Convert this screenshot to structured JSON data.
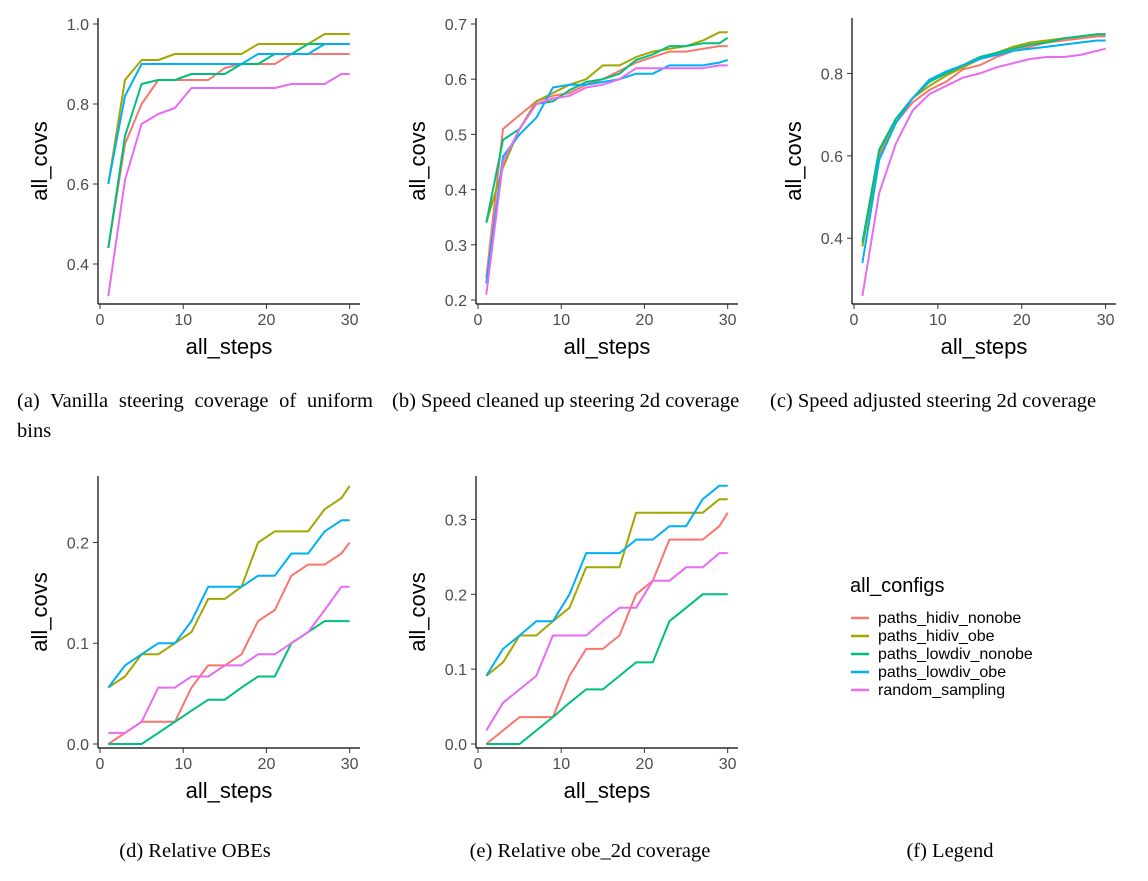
{
  "colors": {
    "paths_hidiv_nonobe": "#F8766D",
    "paths_hidiv_obe": "#A3A500",
    "paths_lowdiv_nonobe": "#00BF7D",
    "paths_lowdiv_obe": "#00B0F6",
    "random_sampling": "#E76BF3"
  },
  "legend": {
    "title": "all_configs",
    "items": [
      "paths_hidiv_nonobe",
      "paths_hidiv_obe",
      "paths_lowdiv_nonobe",
      "paths_lowdiv_obe",
      "random_sampling"
    ]
  },
  "captions": {
    "a": "(a) Vanilla steering coverage of uniform bins",
    "b": "(b) Speed cleaned up steering 2d coverage",
    "c": "(c) Speed adjusted steering 2d coverage",
    "d": "(d) Relative OBEs",
    "e": "(e) Relative obe_2d coverage",
    "f": "(f) Legend"
  },
  "chart_data": [
    {
      "type": "line",
      "id": "a",
      "xlabel": "all_steps",
      "ylabel": "all_covs",
      "xlim": [
        0,
        31
      ],
      "ylim": [
        0.31,
        1.0
      ],
      "xticks": [
        0,
        10,
        20,
        30
      ],
      "yticks": [
        0.4,
        0.6,
        0.8,
        1.0
      ],
      "ytick_labels": [
        "0.4",
        "0.6",
        "0.8",
        "1.0"
      ],
      "x": [
        1,
        3,
        5,
        7,
        9,
        11,
        13,
        15,
        17,
        19,
        21,
        23,
        25,
        27,
        29,
        30
      ],
      "series": [
        {
          "name": "paths_hidiv_nonobe",
          "values": [
            0.44,
            0.7,
            0.8,
            0.86,
            0.86,
            0.86,
            0.86,
            0.89,
            0.9,
            0.9,
            0.9,
            0.925,
            0.925,
            0.925,
            0.925,
            0.925
          ]
        },
        {
          "name": "paths_hidiv_obe",
          "values": [
            0.6,
            0.86,
            0.91,
            0.91,
            0.925,
            0.925,
            0.925,
            0.925,
            0.925,
            0.95,
            0.95,
            0.95,
            0.95,
            0.975,
            0.975,
            0.975
          ]
        },
        {
          "name": "paths_lowdiv_nonobe",
          "values": [
            0.44,
            0.72,
            0.85,
            0.86,
            0.86,
            0.875,
            0.875,
            0.875,
            0.9,
            0.9,
            0.925,
            0.925,
            0.95,
            0.95,
            0.95,
            0.95
          ]
        },
        {
          "name": "paths_lowdiv_obe",
          "values": [
            0.6,
            0.82,
            0.9,
            0.9,
            0.9,
            0.9,
            0.9,
            0.9,
            0.9,
            0.925,
            0.925,
            0.925,
            0.925,
            0.95,
            0.95,
            0.95
          ]
        },
        {
          "name": "random_sampling",
          "values": [
            0.32,
            0.61,
            0.75,
            0.775,
            0.79,
            0.84,
            0.84,
            0.84,
            0.84,
            0.84,
            0.84,
            0.85,
            0.85,
            0.85,
            0.875,
            0.875
          ]
        }
      ]
    },
    {
      "type": "line",
      "id": "b",
      "xlabel": "all_steps",
      "ylabel": "all_covs",
      "xlim": [
        0,
        31
      ],
      "ylim": [
        0.2,
        0.7
      ],
      "xticks": [
        0,
        10,
        20,
        30
      ],
      "yticks": [
        0.2,
        0.3,
        0.4,
        0.5,
        0.6,
        0.7
      ],
      "ytick_labels": [
        "0.2",
        "0.3",
        "0.4",
        "0.5",
        "0.6",
        "0.7"
      ],
      "x": [
        1,
        3,
        5,
        7,
        9,
        11,
        13,
        15,
        17,
        19,
        21,
        23,
        25,
        27,
        29,
        30
      ],
      "series": [
        {
          "name": "paths_hidiv_nonobe",
          "values": [
            0.24,
            0.51,
            0.535,
            0.56,
            0.57,
            0.575,
            0.59,
            0.6,
            0.615,
            0.63,
            0.64,
            0.65,
            0.65,
            0.655,
            0.66,
            0.66
          ]
        },
        {
          "name": "paths_hidiv_obe",
          "values": [
            0.34,
            0.44,
            0.51,
            0.56,
            0.575,
            0.59,
            0.6,
            0.625,
            0.625,
            0.64,
            0.65,
            0.655,
            0.66,
            0.67,
            0.685,
            0.685
          ]
        },
        {
          "name": "paths_lowdiv_nonobe",
          "values": [
            0.34,
            0.49,
            0.51,
            0.555,
            0.56,
            0.58,
            0.595,
            0.6,
            0.61,
            0.635,
            0.645,
            0.66,
            0.66,
            0.665,
            0.665,
            0.675
          ]
        },
        {
          "name": "paths_lowdiv_obe",
          "values": [
            0.23,
            0.46,
            0.5,
            0.53,
            0.585,
            0.59,
            0.59,
            0.595,
            0.6,
            0.61,
            0.61,
            0.625,
            0.625,
            0.625,
            0.63,
            0.635
          ]
        },
        {
          "name": "random_sampling",
          "values": [
            0.21,
            0.45,
            0.51,
            0.555,
            0.565,
            0.57,
            0.585,
            0.59,
            0.6,
            0.62,
            0.62,
            0.62,
            0.62,
            0.62,
            0.625,
            0.625
          ]
        }
      ]
    },
    {
      "type": "line",
      "id": "c",
      "xlabel": "all_steps",
      "ylabel": "all_covs",
      "xlim": [
        0,
        31
      ],
      "ylim": [
        0.25,
        0.92
      ],
      "xticks": [
        0,
        10,
        20,
        30
      ],
      "yticks": [
        0.4,
        0.6,
        0.8
      ],
      "ytick_labels": [
        "0.4",
        "0.6",
        "0.8"
      ],
      "x": [
        1,
        3,
        5,
        7,
        9,
        11,
        13,
        15,
        17,
        19,
        21,
        23,
        25,
        27,
        29,
        30
      ],
      "series": [
        {
          "name": "paths_hidiv_nonobe",
          "values": [
            0.38,
            0.6,
            0.68,
            0.73,
            0.76,
            0.78,
            0.81,
            0.82,
            0.84,
            0.855,
            0.865,
            0.875,
            0.88,
            0.885,
            0.89,
            0.89
          ]
        },
        {
          "name": "paths_hidiv_obe",
          "values": [
            0.38,
            0.61,
            0.69,
            0.74,
            0.77,
            0.795,
            0.815,
            0.835,
            0.85,
            0.865,
            0.875,
            0.88,
            0.885,
            0.89,
            0.895,
            0.895
          ]
        },
        {
          "name": "paths_lowdiv_nonobe",
          "values": [
            0.39,
            0.615,
            0.69,
            0.74,
            0.78,
            0.8,
            0.82,
            0.84,
            0.85,
            0.86,
            0.87,
            0.875,
            0.885,
            0.89,
            0.895,
            0.895
          ]
        },
        {
          "name": "paths_lowdiv_obe",
          "values": [
            0.34,
            0.59,
            0.68,
            0.74,
            0.785,
            0.805,
            0.82,
            0.835,
            0.845,
            0.855,
            0.86,
            0.865,
            0.87,
            0.875,
            0.88,
            0.88
          ]
        },
        {
          "name": "random_sampling",
          "values": [
            0.26,
            0.51,
            0.63,
            0.71,
            0.75,
            0.77,
            0.79,
            0.8,
            0.815,
            0.825,
            0.835,
            0.84,
            0.84,
            0.845,
            0.855,
            0.86
          ]
        }
      ]
    },
    {
      "type": "line",
      "id": "d",
      "xlabel": "all_steps",
      "ylabel": "all_covs",
      "xlim": [
        0,
        31
      ],
      "ylim": [
        0,
        0.26
      ],
      "xticks": [
        0,
        10,
        20,
        30
      ],
      "yticks": [
        0.0,
        0.1,
        0.2
      ],
      "ytick_labels": [
        "0.0",
        "0.1",
        "0.2"
      ],
      "x": [
        1,
        3,
        5,
        7,
        9,
        11,
        13,
        15,
        17,
        19,
        21,
        23,
        25,
        27,
        29,
        30
      ],
      "series": [
        {
          "name": "paths_hidiv_nonobe",
          "values": [
            0.0,
            0.011,
            0.022,
            0.022,
            0.022,
            0.056,
            0.078,
            0.078,
            0.089,
            0.122,
            0.133,
            0.167,
            0.178,
            0.178,
            0.189,
            0.2
          ]
        },
        {
          "name": "paths_hidiv_obe",
          "values": [
            0.056,
            0.067,
            0.089,
            0.089,
            0.1,
            0.111,
            0.144,
            0.144,
            0.156,
            0.2,
            0.211,
            0.211,
            0.211,
            0.233,
            0.244,
            0.256
          ]
        },
        {
          "name": "paths_lowdiv_nonobe",
          "values": [
            0.0,
            0.0,
            0.0,
            0.011,
            0.022,
            0.033,
            0.044,
            0.044,
            0.056,
            0.067,
            0.067,
            0.1,
            0.111,
            0.122,
            0.122,
            0.122
          ]
        },
        {
          "name": "paths_lowdiv_obe",
          "values": [
            0.056,
            0.078,
            0.089,
            0.1,
            0.1,
            0.122,
            0.156,
            0.156,
            0.156,
            0.167,
            0.167,
            0.189,
            0.189,
            0.211,
            0.222,
            0.222
          ]
        },
        {
          "name": "random_sampling",
          "values": [
            0.011,
            0.011,
            0.022,
            0.056,
            0.056,
            0.067,
            0.067,
            0.078,
            0.078,
            0.089,
            0.089,
            0.1,
            0.111,
            0.133,
            0.156,
            0.156
          ]
        }
      ]
    },
    {
      "type": "line",
      "id": "e",
      "xlabel": "all_steps",
      "ylabel": "all_covs",
      "xlim": [
        0,
        31
      ],
      "ylim": [
        0,
        0.35
      ],
      "xticks": [
        0,
        10,
        20,
        30
      ],
      "yticks": [
        0.0,
        0.1,
        0.2,
        0.3
      ],
      "ytick_labels": [
        "0.0",
        "0.1",
        "0.2",
        "0.3"
      ],
      "x": [
        1,
        3,
        5,
        7,
        9,
        11,
        13,
        15,
        17,
        19,
        21,
        23,
        25,
        27,
        29,
        30
      ],
      "series": [
        {
          "name": "paths_hidiv_nonobe",
          "values": [
            0.0,
            0.018,
            0.036,
            0.036,
            0.036,
            0.091,
            0.127,
            0.127,
            0.145,
            0.2,
            0.218,
            0.273,
            0.273,
            0.273,
            0.291,
            0.309
          ]
        },
        {
          "name": "paths_hidiv_obe",
          "values": [
            0.091,
            0.109,
            0.145,
            0.145,
            0.164,
            0.182,
            0.236,
            0.236,
            0.236,
            0.309,
            0.309,
            0.309,
            0.309,
            0.309,
            0.327,
            0.327
          ]
        },
        {
          "name": "paths_lowdiv_nonobe",
          "values": [
            0.0,
            0.0,
            0.0,
            0.018,
            0.036,
            0.055,
            0.073,
            0.073,
            0.091,
            0.109,
            0.109,
            0.164,
            0.182,
            0.2,
            0.2,
            0.2
          ]
        },
        {
          "name": "paths_lowdiv_obe",
          "values": [
            0.091,
            0.127,
            0.145,
            0.164,
            0.164,
            0.2,
            0.255,
            0.255,
            0.255,
            0.273,
            0.273,
            0.291,
            0.291,
            0.327,
            0.345,
            0.345
          ]
        },
        {
          "name": "random_sampling",
          "values": [
            0.018,
            0.055,
            0.073,
            0.091,
            0.145,
            0.145,
            0.145,
            0.164,
            0.182,
            0.182,
            0.218,
            0.218,
            0.236,
            0.236,
            0.255,
            0.255
          ]
        }
      ]
    }
  ]
}
